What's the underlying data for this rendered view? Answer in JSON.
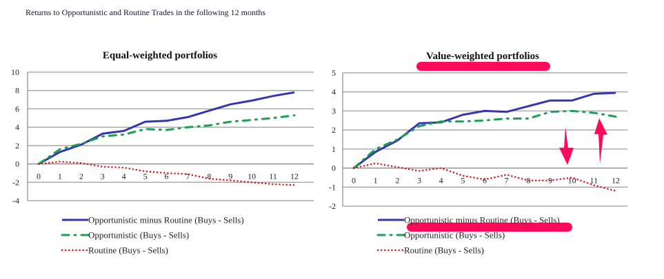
{
  "page_title": "Returns to Opportunistic and Routine Trades in the following 12 months",
  "colors": {
    "blue": "#3434b4",
    "green": "#1aa050",
    "red": "#e0141e",
    "highlight": "#ff0a5a",
    "grid": "#9a9a9a"
  },
  "chart_data": [
    {
      "type": "line",
      "title": "Equal-weighted portfolios",
      "xlabel": "",
      "ylabel": "",
      "x": [
        0,
        1,
        2,
        3,
        4,
        5,
        6,
        7,
        8,
        9,
        10,
        11,
        12
      ],
      "ylim": [
        -4,
        10
      ],
      "yticks": [
        -4,
        -2,
        0,
        2,
        4,
        6,
        8,
        10
      ],
      "grid": true,
      "legend_position": "bottom",
      "series": [
        {
          "name": "Opportunistic minus Routine (Buys - Sells)",
          "style": "solid",
          "color": "#3434b4",
          "values": [
            0,
            1.3,
            2.1,
            3.3,
            3.6,
            4.6,
            4.7,
            5.1,
            5.8,
            6.5,
            6.9,
            7.4,
            7.8
          ]
        },
        {
          "name": "Opportunistic (Buys - Sells)",
          "style": "dash-dot",
          "color": "#1aa050",
          "values": [
            0,
            1.6,
            2.2,
            3.0,
            3.2,
            3.8,
            3.7,
            4.0,
            4.2,
            4.6,
            4.8,
            5.0,
            5.3
          ]
        },
        {
          "name": "Routine (Buys - Sells)",
          "style": "dotted",
          "color": "#e0141e",
          "values": [
            0,
            0.25,
            0.1,
            -0.3,
            -0.4,
            -0.8,
            -1.0,
            -1.1,
            -1.6,
            -1.8,
            -2.0,
            -2.2,
            -2.3
          ]
        }
      ]
    },
    {
      "type": "line",
      "title": "Value-weighted portfolios",
      "xlabel": "",
      "ylabel": "",
      "x": [
        0,
        1,
        2,
        3,
        4,
        5,
        6,
        7,
        8,
        9,
        10,
        11,
        12
      ],
      "ylim": [
        -2,
        5
      ],
      "yticks": [
        -2,
        -1,
        0,
        1,
        2,
        3,
        4,
        5
      ],
      "grid": true,
      "legend_position": "bottom",
      "annotations": [
        "pink highlight under title",
        "pink highlight under first legend entry",
        "pink down arrow near x=10",
        "pink up arrow near x=11"
      ],
      "series": [
        {
          "name": "Opportunistic minus Routine (Buys - Sells)",
          "style": "solid",
          "color": "#3434b4",
          "values": [
            0,
            0.85,
            1.45,
            2.35,
            2.4,
            2.8,
            3.0,
            2.95,
            3.25,
            3.55,
            3.55,
            3.9,
            3.95
          ]
        },
        {
          "name": "Opportunistic (Buys - Sells)",
          "style": "dash-dot",
          "color": "#1aa050",
          "values": [
            0,
            1.0,
            1.5,
            2.2,
            2.45,
            2.45,
            2.5,
            2.6,
            2.6,
            2.95,
            3.0,
            2.9,
            2.7
          ]
        },
        {
          "name": "Routine (Buys - Sells)",
          "style": "dotted",
          "color": "#e0141e",
          "values": [
            0,
            0.25,
            0.05,
            -0.15,
            0.0,
            -0.4,
            -0.6,
            -0.35,
            -0.65,
            -0.65,
            -0.5,
            -0.9,
            -1.2
          ]
        }
      ]
    }
  ]
}
